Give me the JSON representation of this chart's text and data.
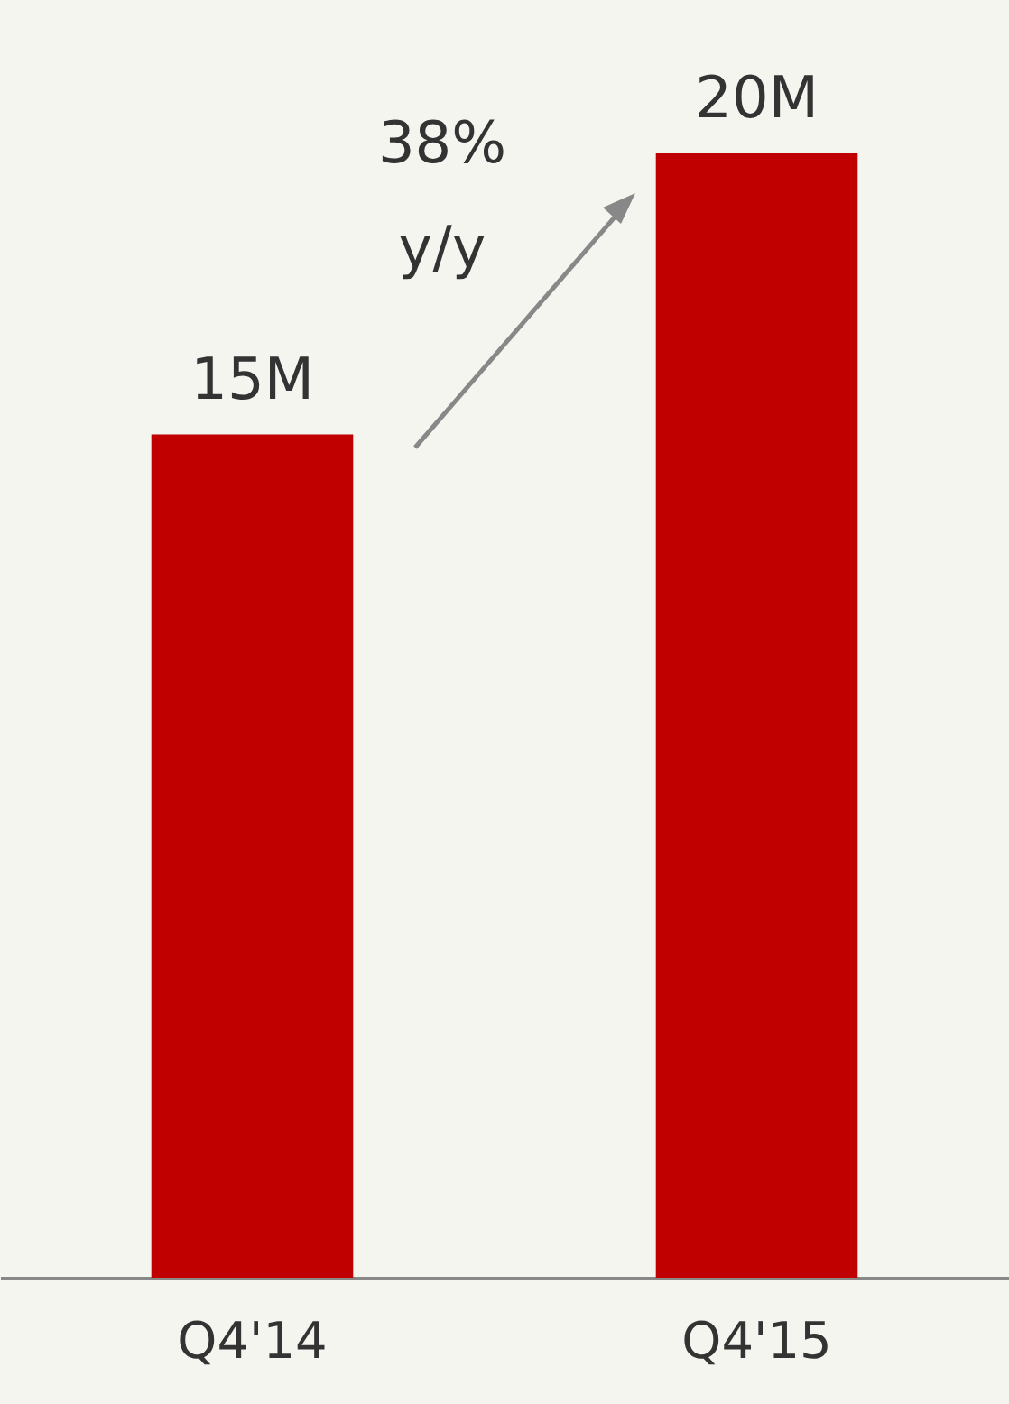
{
  "chart_data": {
    "type": "bar",
    "categories": [
      "Q4'14",
      "Q4'15"
    ],
    "values": [
      15,
      20
    ],
    "value_labels": [
      "15M",
      "20M"
    ],
    "color": "#c00000",
    "annotations": [
      "38%\ny/y"
    ]
  }
}
